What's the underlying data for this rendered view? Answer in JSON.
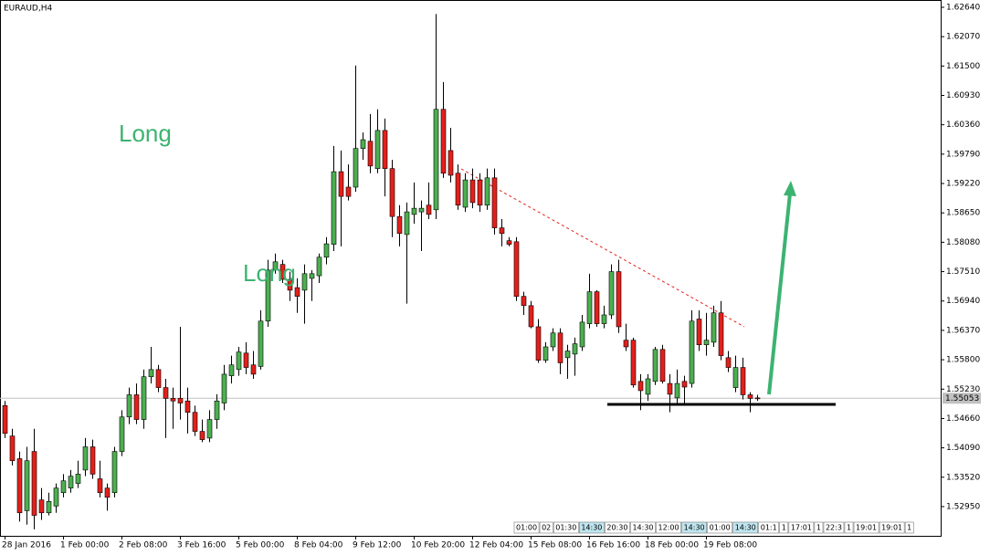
{
  "chart_data": {
    "type": "candlestick",
    "title": "EURAUD,H4",
    "up_color": "#4caf50",
    "down_color": "#e3201b",
    "ylim": [
      1.52365,
      1.62746
    ],
    "yticks": [
      {
        "value": 1.6264,
        "label": "1.62640"
      },
      {
        "value": 1.6207,
        "label": "1.62070"
      },
      {
        "value": 1.615,
        "label": "1.61500"
      },
      {
        "value": 1.6093,
        "label": "1.60930"
      },
      {
        "value": 1.6036,
        "label": "1.60360"
      },
      {
        "value": 1.5979,
        "label": "1.59790"
      },
      {
        "value": 1.5922,
        "label": "1.59220"
      },
      {
        "value": 1.5865,
        "label": "1.58650"
      },
      {
        "value": 1.5808,
        "label": "1.58080"
      },
      {
        "value": 1.5751,
        "label": "1.57510"
      },
      {
        "value": 1.5694,
        "label": "1.56940"
      },
      {
        "value": 1.5637,
        "label": "1.56370"
      },
      {
        "value": 1.558,
        "label": "1.55800"
      },
      {
        "value": 1.5523,
        "label": "1.55230"
      },
      {
        "value": 1.5466,
        "label": "1.54660"
      },
      {
        "value": 1.5409,
        "label": "1.54090"
      },
      {
        "value": 1.5352,
        "label": "1.53520"
      },
      {
        "value": 1.5295,
        "label": "1.52950"
      }
    ],
    "last_price": 1.55053,
    "annotations": [
      "Long",
      "Long"
    ],
    "time_boxes": [
      "01:00",
      "02",
      "01:30",
      "14:30",
      "20:30",
      "14:30",
      "12:00",
      "14:30",
      "01:00",
      "14:30",
      "01:1",
      "1",
      "17:01",
      "1",
      "22:3",
      "1",
      "19:01",
      "19:01",
      "1"
    ],
    "categories": [
      "28 Jan 2016",
      null,
      null,
      null,
      null,
      null,
      null,
      null,
      "1 Feb 00:00",
      null,
      null,
      null,
      null,
      null,
      null,
      null,
      "2 Feb 08:00",
      null,
      null,
      null,
      null,
      null,
      null,
      null,
      "3 Feb 16:00",
      null,
      null,
      null,
      null,
      null,
      null,
      null,
      "5 Feb 00:00",
      null,
      null,
      null,
      null,
      null,
      null,
      null,
      "8 Feb 04:00",
      null,
      null,
      null,
      null,
      null,
      null,
      null,
      "9 Feb 12:00",
      null,
      null,
      null,
      null,
      null,
      null,
      null,
      "10 Feb 20:00",
      null,
      null,
      null,
      null,
      null,
      null,
      null,
      "12 Feb 04:00",
      null,
      null,
      null,
      null,
      null,
      null,
      null,
      "15 Feb 08:00",
      null,
      null,
      null,
      null,
      null,
      null,
      null,
      "16 Feb 16:00",
      null,
      null,
      null,
      null,
      null,
      null,
      null,
      "18 Feb 00:00",
      null,
      null,
      null,
      null,
      null,
      null,
      null,
      "19 Feb 08:00",
      null,
      null,
      null,
      null,
      null,
      null,
      null
    ],
    "open": [
      1.5491,
      1.5432,
      1.5388,
      1.5287,
      1.5402,
      1.5308,
      1.5283,
      1.5296,
      1.5322,
      1.5331,
      1.534,
      1.5366,
      1.5411,
      1.5349,
      1.5331,
      1.5322,
      1.5402,
      1.5469,
      1.5512,
      1.5464,
      1.5547,
      1.5561,
      1.5526,
      1.5505,
      1.5505,
      1.55,
      1.5478,
      1.5441,
      1.5428,
      1.5464,
      1.5496,
      1.5549,
      1.5561,
      1.5593,
      1.557,
      1.5567,
      1.5655,
      1.5754,
      1.5765,
      1.5736,
      1.572,
      1.5715,
      1.5738,
      1.5743,
      1.5779,
      1.5804,
      1.5945,
      1.5915,
      1.5915,
      1.599,
      1.6004,
      1.5951,
      1.6025,
      1.5951,
      1.5858,
      1.5823,
      1.5862,
      1.5867,
      1.588,
      1.5871,
      1.6066,
      1.5986,
      1.5942,
      1.5876,
      1.5929,
      1.5929,
      1.588,
      1.5933,
      1.5836,
      1.5811,
      1.5809,
      1.5703,
      1.5685,
      1.5644,
      1.5579,
      1.5605,
      1.5632,
      1.5584,
      1.5591,
      1.5605,
      1.565,
      1.5712,
      1.565,
      1.5667,
      1.5751,
      1.5618,
      1.5618,
      1.5538,
      1.5513,
      1.5538,
      1.56,
      1.5534,
      1.5506,
      1.5538,
      1.5534,
      1.5659,
      1.5609,
      1.5614,
      1.5671,
      1.5584,
      1.5526,
      1.5565,
      1.5512,
      1.5506
    ],
    "high": [
      1.55,
      1.5446,
      1.5402,
      1.5411,
      1.5446,
      1.5331,
      1.5322,
      1.534,
      1.5358,
      1.5366,
      1.5384,
      1.5428,
      1.5425,
      1.5384,
      1.534,
      1.5411,
      1.5482,
      1.5526,
      1.5534,
      1.5561,
      1.5605,
      1.557,
      1.5543,
      1.5526,
      1.5644,
      1.5526,
      1.5491,
      1.5464,
      1.5482,
      1.5513,
      1.557,
      1.5588,
      1.5605,
      1.5614,
      1.5597,
      1.5676,
      1.5774,
      1.5786,
      1.5774,
      1.5751,
      1.5738,
      1.5765,
      1.5754,
      1.5786,
      1.5818,
      1.5995,
      1.5986,
      1.5959,
      1.6151,
      1.6021,
      1.6057,
      1.6066,
      1.6048,
      1.5968,
      1.588,
      1.5885,
      1.5924,
      1.5889,
      1.5924,
      1.6251,
      1.6119,
      1.603,
      1.5959,
      1.5942,
      1.5951,
      1.5942,
      1.5951,
      1.5951,
      1.5853,
      1.5818,
      1.5818,
      1.5712,
      1.5694,
      1.5659,
      1.5614,
      1.5641,
      1.5641,
      1.5609,
      1.5623,
      1.5667,
      1.5747,
      1.5715,
      1.5685,
      1.5765,
      1.5774,
      1.565,
      1.5623,
      1.5552,
      1.5552,
      1.5605,
      1.5609,
      1.5552,
      1.5561,
      1.5549,
      1.5676,
      1.5676,
      1.5671,
      1.5685,
      1.5694,
      1.5597,
      1.5588,
      1.5584,
      1.5517,
      1.5512
    ],
    "low": [
      1.5428,
      1.5375,
      1.5266,
      1.526,
      1.5251,
      1.5269,
      1.5278,
      1.5283,
      1.5313,
      1.5322,
      1.5331,
      1.5354,
      1.5349,
      1.5313,
      1.5287,
      1.5313,
      1.5393,
      1.5455,
      1.5455,
      1.5446,
      1.5534,
      1.5517,
      1.5428,
      1.5446,
      1.5464,
      1.5437,
      1.5432,
      1.542,
      1.542,
      1.5446,
      1.5482,
      1.5534,
      1.5549,
      1.5552,
      1.5543,
      1.5561,
      1.5644,
      1.5747,
      1.5729,
      1.5694,
      1.5671,
      1.565,
      1.5694,
      1.5729,
      1.5765,
      1.5791,
      1.58,
      1.5889,
      1.5906,
      1.5968,
      1.5942,
      1.5942,
      1.5897,
      1.5818,
      1.58,
      1.5689,
      1.5844,
      1.5791,
      1.5853,
      1.5853,
      1.5933,
      1.5924,
      1.5871,
      1.5867,
      1.5874,
      1.5867,
      1.5871,
      1.5823,
      1.58,
      1.58,
      1.5694,
      1.5667,
      1.5641,
      1.5574,
      1.5574,
      1.5597,
      1.5552,
      1.5543,
      1.5549,
      1.5597,
      1.5641,
      1.5644,
      1.5641,
      1.5659,
      1.5632,
      1.5597,
      1.5526,
      1.5482,
      1.55,
      1.5531,
      1.5534,
      1.5478,
      1.5491,
      1.5496,
      1.5526,
      1.5597,
      1.5588,
      1.5605,
      1.5579,
      1.5556,
      1.5517,
      1.5503,
      1.5478,
      1.55
    ],
    "close": [
      1.5437,
      1.5384,
      1.5283,
      1.5384,
      1.5278,
      1.5283,
      1.5305,
      1.5331,
      1.5345,
      1.5354,
      1.5358,
      1.5411,
      1.5358,
      1.5322,
      1.5313,
      1.5402,
      1.5469,
      1.5512,
      1.5464,
      1.5547,
      1.5561,
      1.5526,
      1.5505,
      1.55,
      1.5496,
      1.5478,
      1.5441,
      1.5425,
      1.5464,
      1.55,
      1.5552,
      1.557,
      1.5595,
      1.5565,
      1.5552,
      1.5655,
      1.5754,
      1.577,
      1.5736,
      1.5715,
      1.5703,
      1.5747,
      1.5747,
      1.5779,
      1.5805,
      1.5945,
      1.5897,
      1.5897,
      1.599,
      1.6007,
      1.5956,
      1.6025,
      1.5951,
      1.5858,
      1.5825,
      1.5867,
      1.5874,
      1.5874,
      1.5862,
      1.6066,
      1.5942,
      1.5938,
      1.588,
      1.5929,
      1.5885,
      1.588,
      1.5933,
      1.5836,
      1.5825,
      1.5804,
      1.5703,
      1.5685,
      1.5644,
      1.5579,
      1.5605,
      1.5632,
      1.5574,
      1.5597,
      1.5611,
      1.5653,
      1.5712,
      1.565,
      1.5667,
      1.5751,
      1.5644,
      1.5605,
      1.5531,
      1.552,
      1.5543,
      1.56,
      1.5538,
      1.5513,
      1.5534,
      1.5527,
      1.5655,
      1.5609,
      1.5618,
      1.5671,
      1.5588,
      1.5565,
      1.5565,
      1.5512,
      1.5505,
      1.5505
    ]
  }
}
